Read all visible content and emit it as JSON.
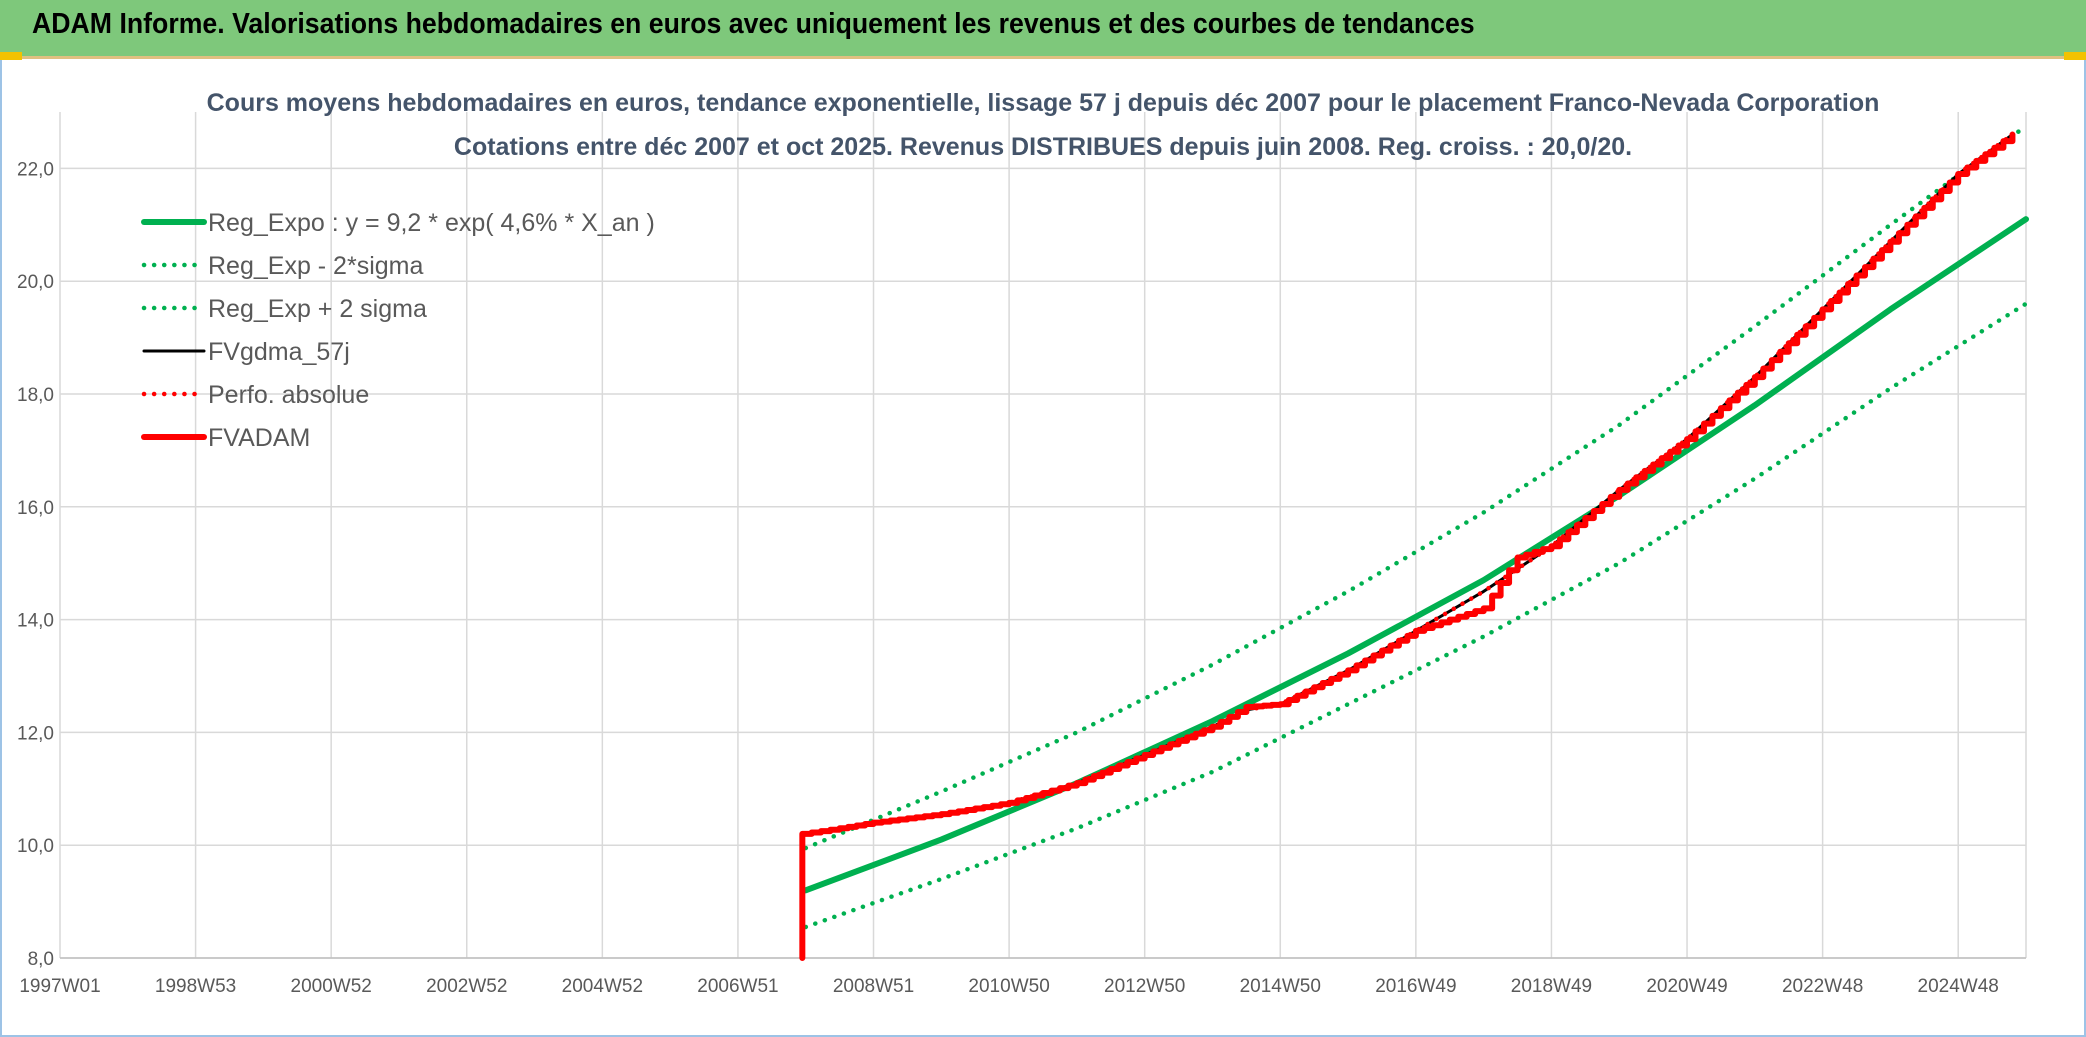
{
  "header": {
    "title": "ADAM Informe. Valorisations hebdomadaires en euros avec uniquement les revenus et des courbes de tendances"
  },
  "chart_data": {
    "type": "line",
    "title": "Cours moyens hebdomadaires en euros, tendance exponentielle, lissage 57 j depuis déc 2007 pour le placement Franco-Nevada Corporation",
    "subtitle": "Cotations entre déc 2007 et oct 2025. Revenus DISTRIBUES depuis juin 2008. Reg. croiss. : 20,0/20.",
    "xlabel": "",
    "ylabel": "",
    "x_tick_labels": [
      "1997W01",
      "1998W53",
      "2000W52",
      "2002W52",
      "2004W52",
      "2006W51",
      "2008W51",
      "2010W50",
      "2012W50",
      "2014W50",
      "2016W49",
      "2018W49",
      "2020W49",
      "2022W48",
      "2024W48"
    ],
    "y_ticks": [
      "8,0",
      "10,0",
      "12,0",
      "14,0",
      "16,0",
      "18,0",
      "20,0",
      "22,0"
    ],
    "ylim": [
      8,
      23
    ],
    "xlim": [
      1997.0,
      2026.0
    ],
    "grid": true,
    "legend_position": "top-left",
    "series": [
      {
        "name": "Reg_Expo : y = 9,2 * exp( 4,6% *  X_an )",
        "style": "solid-thick",
        "color": "#00b050",
        "x": [
          2008.0,
          2010.0,
          2012.0,
          2014.0,
          2016.0,
          2018.0,
          2020.0,
          2022.0,
          2024.0,
          2026.0
        ],
        "y": [
          9.2,
          10.1,
          11.1,
          12.2,
          13.4,
          14.7,
          16.2,
          17.8,
          19.5,
          21.1
        ]
      },
      {
        "name": "Reg_Exp - 2*sigma",
        "style": "dotted",
        "color": "#00b050",
        "x": [
          2008.0,
          2010.0,
          2012.0,
          2014.0,
          2016.0,
          2018.0,
          2020.0,
          2022.0,
          2024.0,
          2026.0
        ],
        "y": [
          8.55,
          9.4,
          10.3,
          11.3,
          12.5,
          13.7,
          15.0,
          16.5,
          18.1,
          19.6
        ]
      },
      {
        "name": "Reg_Exp + 2 sigma",
        "style": "dotted",
        "color": "#00b050",
        "x": [
          2008.0,
          2010.0,
          2012.0,
          2014.0,
          2016.0,
          2018.0,
          2020.0,
          2022.0,
          2024.0,
          2026.0
        ],
        "y": [
          9.95,
          10.95,
          12.0,
          13.2,
          14.5,
          15.9,
          17.45,
          19.2,
          21.0,
          22.75
        ]
      },
      {
        "name": "FVgdma_57j",
        "style": "solid",
        "color": "#000000",
        "x": [
          2007.95,
          2008.5,
          2009.0,
          2010.0,
          2011.0,
          2012.0,
          2013.0,
          2014.0,
          2014.5,
          2015.0,
          2016.0,
          2017.0,
          2018.0,
          2019.0,
          2020.0,
          2021.0,
          2022.0,
          2023.0,
          2024.0,
          2025.0,
          2025.8
        ],
        "y": [
          10.2,
          10.3,
          10.4,
          10.55,
          10.75,
          11.1,
          11.6,
          12.1,
          12.4,
          12.5,
          13.1,
          13.8,
          14.5,
          15.3,
          16.3,
          17.2,
          18.3,
          19.5,
          20.7,
          21.9,
          22.6
        ]
      },
      {
        "name": "Perfo. absolue",
        "style": "dotted",
        "color": "#ff0000",
        "x": [
          2007.95,
          2008.5,
          2009.0,
          2010.0,
          2011.0,
          2012.0,
          2013.0,
          2014.0,
          2014.5,
          2015.0,
          2016.0,
          2017.0,
          2018.0,
          2019.0,
          2020.0,
          2021.0,
          2022.0,
          2023.0,
          2024.0,
          2025.0,
          2025.8
        ],
        "y": [
          10.2,
          10.3,
          10.4,
          10.55,
          10.75,
          11.1,
          11.6,
          12.1,
          12.4,
          12.5,
          13.1,
          13.8,
          14.5,
          15.3,
          16.3,
          17.2,
          18.3,
          19.5,
          20.7,
          21.9,
          22.6
        ]
      },
      {
        "name": "FVADAM",
        "style": "solid-thick",
        "color": "#ff0000",
        "x": [
          2007.95,
          2007.95,
          2008.5,
          2009.0,
          2010.0,
          2011.0,
          2012.0,
          2013.0,
          2014.0,
          2014.5,
          2015.0,
          2016.0,
          2017.0,
          2018.0,
          2018.5,
          2019.0,
          2020.0,
          2021.0,
          2022.0,
          2023.0,
          2024.0,
          2025.0,
          2025.8
        ],
        "y": [
          8.0,
          10.2,
          10.3,
          10.4,
          10.55,
          10.75,
          11.1,
          11.6,
          12.1,
          12.45,
          12.5,
          13.1,
          13.8,
          14.2,
          15.1,
          15.3,
          16.3,
          17.2,
          18.3,
          19.5,
          20.7,
          21.9,
          22.6
        ]
      }
    ]
  }
}
